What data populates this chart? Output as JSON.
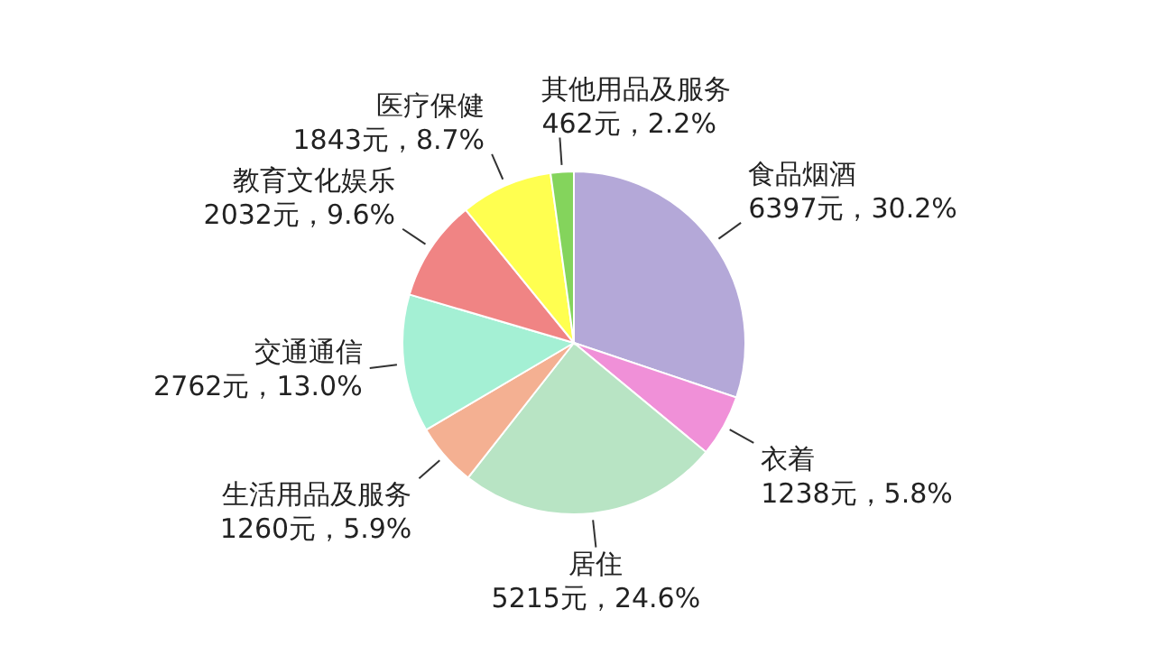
{
  "chart_data": {
    "type": "pie",
    "categories": [
      "食品烟酒",
      "衣着",
      "居住",
      "生活用品及服务",
      "交通通信",
      "教育文化娱乐",
      "医疗保健",
      "其他用品及服务"
    ],
    "values": [
      6397,
      1238,
      5215,
      1260,
      2762,
      2032,
      1843,
      462
    ],
    "value_labels": [
      "6397元，30.2%",
      "1238元，5.8%",
      "5215元，24.6%",
      "1260元，5.9%",
      "2762元，13.0%",
      "2032元，9.6%",
      "1843元，8.7%",
      "462元，2.2%"
    ],
    "colors": [
      "#b4a8d8",
      "#f090d8",
      "#b8e4c4",
      "#f4b092",
      "#a4f0d4",
      "#f08484",
      "#ffff50",
      "#84d45c"
    ]
  }
}
